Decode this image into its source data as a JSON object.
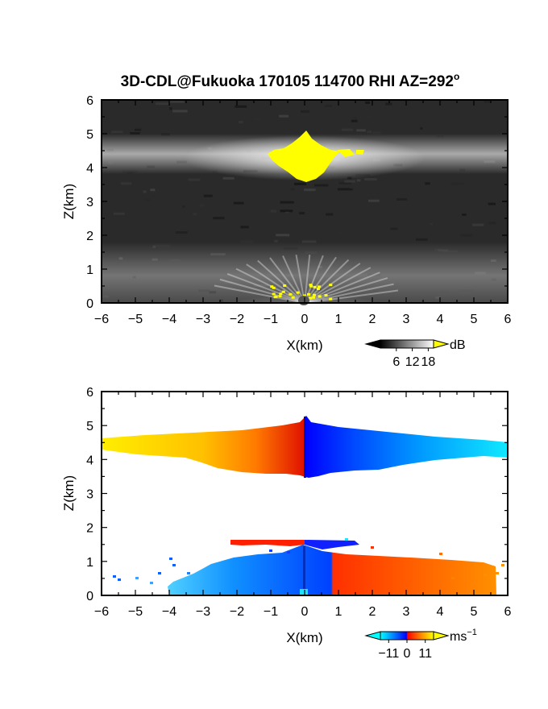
{
  "figure": {
    "title": "3D-CDL@Fukuoka 170105 114700 RHI AZ=292",
    "title_superscript": "o"
  },
  "chart_data": [
    {
      "type": "heatmap",
      "panel": "top",
      "quantity": "backscatter intensity",
      "xlabel": "X(km)",
      "ylabel": "Z(km)",
      "xlim": [
        -6,
        6
      ],
      "ylim": [
        0,
        6
      ],
      "xticks": [
        -6,
        -5,
        -4,
        -3,
        -2,
        -1,
        0,
        1,
        2,
        3,
        4,
        5,
        6
      ],
      "yticks": [
        0,
        1,
        2,
        3,
        4,
        5,
        6
      ],
      "colormap": [
        "#000000",
        "#ffffff"
      ],
      "saturation_color": "#ffff00",
      "colorbar": {
        "unit": "dB",
        "ticks": [
          6,
          12,
          18
        ],
        "range": [
          0,
          20
        ],
        "extend": "both"
      },
      "features": [
        {
          "name": "upper layer",
          "z_center_km": 4.3,
          "thickness_km": 0.5,
          "x_range_km": [
            -6,
            6
          ]
        },
        {
          "name": "saturated region aloft",
          "x_center_km": 0.1,
          "z_range_km": [
            3.6,
            5.1
          ],
          "value_db": 20
        },
        {
          "name": "lower layer",
          "z_range_km": [
            0,
            1.5
          ],
          "x_range_km": [
            -6,
            6
          ]
        }
      ]
    },
    {
      "type": "heatmap",
      "panel": "bottom",
      "quantity": "radial velocity",
      "xlabel": "X(km)",
      "ylabel": "Z(km)",
      "xlim": [
        -6,
        6
      ],
      "ylim": [
        0,
        6
      ],
      "xticks": [
        -6,
        -5,
        -4,
        -3,
        -2,
        -1,
        0,
        1,
        2,
        3,
        4,
        5,
        6
      ],
      "yticks": [
        0,
        1,
        2,
        3,
        4,
        5,
        6
      ],
      "colormap": [
        "#00ffff",
        "#0080ff",
        "#0000ff",
        "#ff0000",
        "#ff8000",
        "#ffff00"
      ],
      "colorbar": {
        "unit": "ms",
        "unit_superscript": "−1",
        "ticks": [
          "−11",
          "0",
          "11"
        ],
        "tick_values": [
          -11,
          0,
          11
        ],
        "range": [
          -16,
          16
        ],
        "extend": "both"
      },
      "features": [
        {
          "name": "upper layer west",
          "x_range_km": [
            -6,
            0
          ],
          "z_range_km": [
            3.5,
            4.9
          ],
          "velocity_ms": 11
        },
        {
          "name": "upper layer east",
          "x_range_km": [
            0,
            6
          ],
          "z_range_km": [
            3.5,
            5.2
          ],
          "velocity_ms": -11
        },
        {
          "name": "lower layer west",
          "x_range_km": [
            -4,
            0
          ],
          "z_range_km": [
            0,
            1.2
          ],
          "velocity_ms": -9
        },
        {
          "name": "lower layer east",
          "x_range_km": [
            0,
            5.8
          ],
          "z_range_km": [
            0,
            1.2
          ],
          "velocity_ms": 9
        }
      ]
    }
  ]
}
